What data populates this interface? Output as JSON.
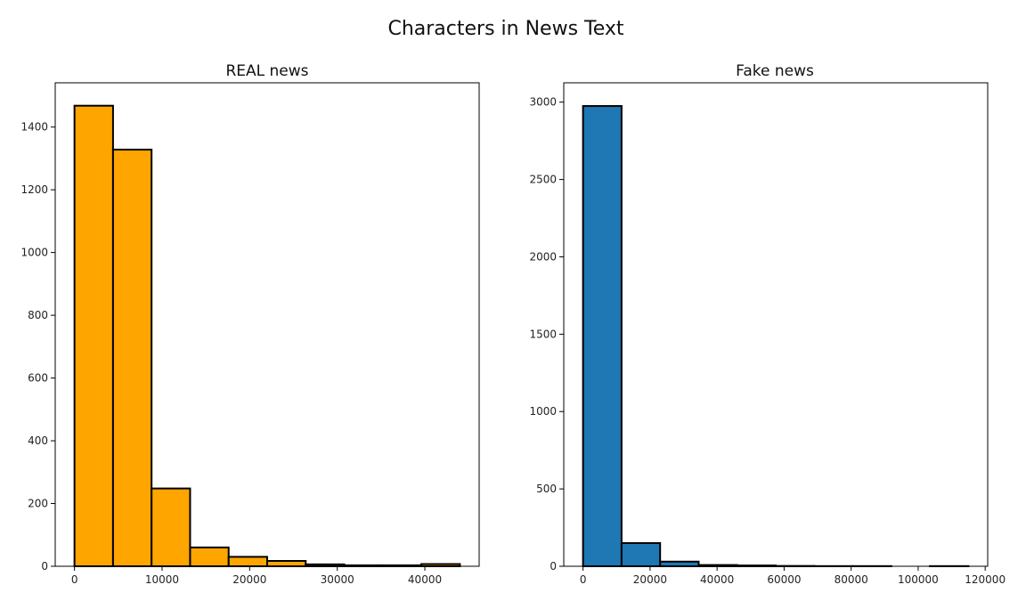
{
  "figure_title": "Characters in News Text",
  "chart_data": [
    {
      "type": "bar",
      "subtype": "histogram",
      "title": "REAL news",
      "color": "#ffa500",
      "edgecolor": "#000000",
      "bins": [
        {
          "x0": 0,
          "x1": 4400,
          "count": 1468
        },
        {
          "x0": 4400,
          "x1": 8800,
          "count": 1328
        },
        {
          "x0": 8800,
          "x1": 13200,
          "count": 248
        },
        {
          "x0": 13200,
          "x1": 17600,
          "count": 60
        },
        {
          "x0": 17600,
          "x1": 22000,
          "count": 30
        },
        {
          "x0": 22000,
          "x1": 26400,
          "count": 17
        },
        {
          "x0": 26400,
          "x1": 30800,
          "count": 6
        },
        {
          "x0": 30800,
          "x1": 35200,
          "count": 3
        },
        {
          "x0": 35200,
          "x1": 39600,
          "count": 3
        },
        {
          "x0": 39600,
          "x1": 44000,
          "count": 7
        }
      ],
      "xlim": [
        -2200,
        46200
      ],
      "ylim": [
        0,
        1541
      ],
      "xticks": [
        0,
        10000,
        20000,
        30000,
        40000
      ],
      "yticks": [
        0,
        200,
        400,
        600,
        800,
        1000,
        1200,
        1400
      ],
      "xlabel": "",
      "ylabel": "",
      "grid": false
    },
    {
      "type": "bar",
      "subtype": "histogram",
      "title": "Fake news",
      "color": "#1f77b4",
      "edgecolor": "#000000",
      "bins": [
        {
          "x0": 0,
          "x1": 11500,
          "count": 2975
        },
        {
          "x0": 11500,
          "x1": 23000,
          "count": 150
        },
        {
          "x0": 23000,
          "x1": 34500,
          "count": 30
        },
        {
          "x0": 34500,
          "x1": 46000,
          "count": 8
        },
        {
          "x0": 46000,
          "x1": 57500,
          "count": 5
        },
        {
          "x0": 57500,
          "x1": 69000,
          "count": 2
        },
        {
          "x0": 69000,
          "x1": 80500,
          "count": 1
        },
        {
          "x0": 80500,
          "x1": 92000,
          "count": 1
        },
        {
          "x0": 92000,
          "x1": 103500,
          "count": 0
        },
        {
          "x0": 103500,
          "x1": 115000,
          "count": 1
        }
      ],
      "xlim": [
        -5750,
        120750
      ],
      "ylim": [
        0,
        3125
      ],
      "xticks": [
        0,
        20000,
        40000,
        60000,
        80000,
        100000,
        120000
      ],
      "yticks": [
        0,
        500,
        1000,
        1500,
        2000,
        2500,
        3000
      ],
      "xlabel": "",
      "ylabel": "",
      "grid": false
    }
  ]
}
